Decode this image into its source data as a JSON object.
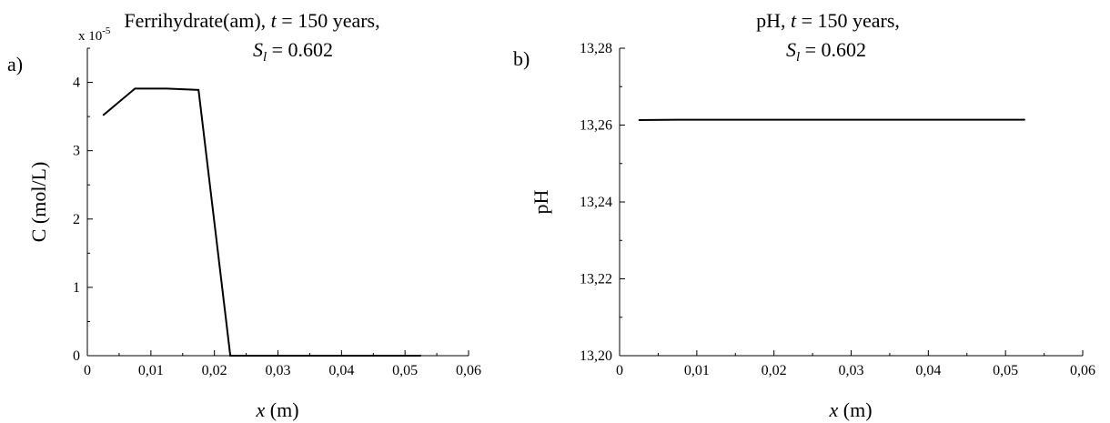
{
  "chart_data": [
    {
      "type": "line",
      "panel_label": "a)",
      "title_line1": {
        "pre": "Ferrihydrate(am), ",
        "var": "t",
        "post": " = 150 years,"
      },
      "title_line2": {
        "var": "S",
        "sub": "l",
        "post": " = 0.602"
      },
      "xlabel": {
        "var": "x",
        "post": " (m)"
      },
      "ylabel": "C (mol/L)",
      "y_multiplier": {
        "base": "x 10",
        "exp": "-5"
      },
      "xlim": [
        0,
        0.06
      ],
      "ylim": [
        0,
        4.5
      ],
      "x_ticks": [
        0,
        0.01,
        0.02,
        0.03,
        0.04,
        0.05,
        0.06
      ],
      "x_tick_labels": [
        "0",
        "0,01",
        "0,02",
        "0,03",
        "0,04",
        "0,05",
        "0,06"
      ],
      "y_ticks": [
        0,
        1,
        2,
        3,
        4
      ],
      "y_tick_labels": [
        "0",
        "1",
        "2",
        "3",
        "4"
      ],
      "grid": false,
      "series": [
        {
          "x": [
            0.0025,
            0.0075,
            0.0125,
            0.0175,
            0.0225,
            0.0275,
            0.0325,
            0.0375,
            0.0425,
            0.0475,
            0.0525
          ],
          "values": [
            3.52,
            3.91,
            3.91,
            3.89,
            0.0,
            0.0,
            0.0,
            0.0,
            0.0,
            0.0,
            0.0
          ]
        }
      ]
    },
    {
      "type": "line",
      "panel_label": "b)",
      "title_line1": {
        "pre": "pH, ",
        "var": "t",
        "post": " = 150 years,"
      },
      "title_line2": {
        "var": "S",
        "sub": "l",
        "post": " = 0.602"
      },
      "xlabel": {
        "var": "x",
        "post": " (m)"
      },
      "ylabel": "pH",
      "xlim": [
        0,
        0.06
      ],
      "ylim": [
        13.2,
        13.28
      ],
      "x_ticks": [
        0,
        0.01,
        0.02,
        0.03,
        0.04,
        0.05,
        0.06
      ],
      "x_tick_labels": [
        "0",
        "0,01",
        "0,02",
        "0,03",
        "0,04",
        "0,05",
        "0,06"
      ],
      "y_ticks": [
        13.2,
        13.22,
        13.24,
        13.26,
        13.28
      ],
      "y_tick_labels": [
        "13,20",
        "13,22",
        "13,24",
        "13,26",
        "13,28"
      ],
      "grid": false,
      "series": [
        {
          "x": [
            0.0025,
            0.0075,
            0.0125,
            0.0175,
            0.0225,
            0.0275,
            0.0325,
            0.0375,
            0.0425,
            0.0475,
            0.0525
          ],
          "values": [
            13.2613,
            13.2614,
            13.2614,
            13.2614,
            13.2614,
            13.2614,
            13.2614,
            13.2614,
            13.2614,
            13.2614,
            13.2614
          ]
        }
      ]
    }
  ]
}
